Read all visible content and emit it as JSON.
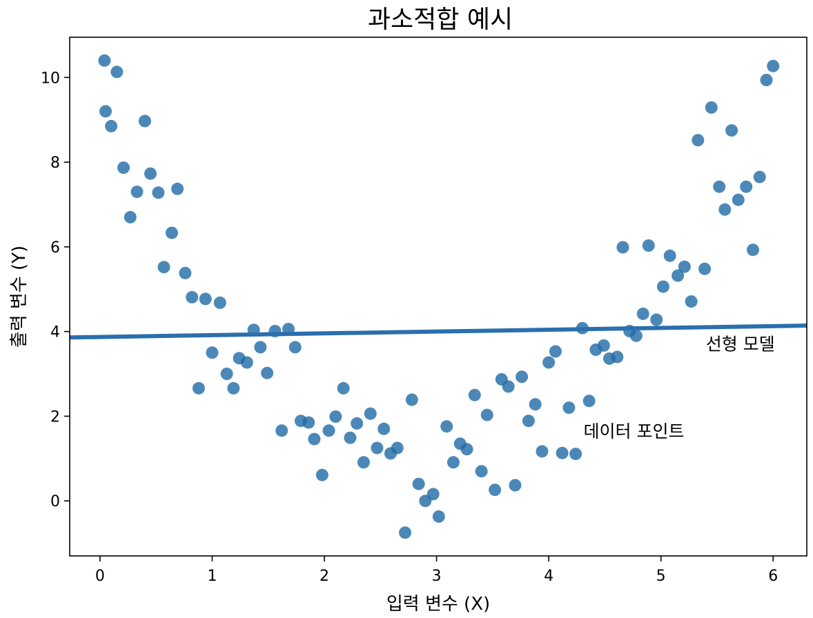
{
  "chart_data": {
    "type": "scatter",
    "title": "과소적합 예시",
    "xlabel": "입력 변수 (X)",
    "ylabel": "출력 변수 (Y)",
    "xlim": [
      -0.27,
      6.3
    ],
    "ylim": [
      -1.3,
      10.95
    ],
    "xticks": [
      0,
      1,
      2,
      3,
      4,
      5,
      6
    ],
    "yticks": [
      0,
      2,
      4,
      6,
      8,
      10
    ],
    "grid": false,
    "colors": {
      "points": "#1f6aa5",
      "line": "#2a6fae"
    },
    "series": [
      {
        "type": "scatter",
        "points": [
          [
            0.04,
            10.4
          ],
          [
            0.05,
            9.2
          ],
          [
            0.1,
            8.85
          ],
          [
            0.15,
            10.13
          ],
          [
            0.21,
            7.87
          ],
          [
            0.27,
            6.7
          ],
          [
            0.33,
            7.3
          ],
          [
            0.4,
            8.97
          ],
          [
            0.45,
            7.73
          ],
          [
            0.52,
            7.28
          ],
          [
            0.57,
            5.52
          ],
          [
            0.64,
            6.33
          ],
          [
            0.69,
            7.37
          ],
          [
            0.76,
            5.38
          ],
          [
            0.82,
            4.81
          ],
          [
            0.88,
            2.66
          ],
          [
            0.94,
            4.77
          ],
          [
            1.0,
            3.5
          ],
          [
            1.07,
            4.68
          ],
          [
            1.13,
            3.0
          ],
          [
            1.19,
            2.66
          ],
          [
            1.24,
            3.37
          ],
          [
            1.31,
            3.27
          ],
          [
            1.37,
            4.04
          ],
          [
            1.43,
            3.63
          ],
          [
            1.49,
            3.02
          ],
          [
            1.56,
            4.01
          ],
          [
            1.62,
            1.66
          ],
          [
            1.68,
            4.06
          ],
          [
            1.74,
            3.63
          ],
          [
            1.79,
            1.89
          ],
          [
            1.86,
            1.85
          ],
          [
            1.91,
            1.46
          ],
          [
            1.98,
            0.61
          ],
          [
            2.04,
            1.66
          ],
          [
            2.1,
            1.99
          ],
          [
            2.17,
            2.66
          ],
          [
            2.23,
            1.49
          ],
          [
            2.29,
            1.83
          ],
          [
            2.35,
            0.91
          ],
          [
            2.41,
            2.06
          ],
          [
            2.47,
            1.25
          ],
          [
            2.53,
            1.7
          ],
          [
            2.59,
            1.12
          ],
          [
            2.65,
            1.25
          ],
          [
            2.78,
            2.39
          ],
          [
            2.84,
            0.4
          ],
          [
            2.9,
            0.0
          ],
          [
            2.97,
            0.16
          ],
          [
            3.02,
            -0.37
          ],
          [
            2.72,
            -0.75
          ],
          [
            3.09,
            1.76
          ],
          [
            3.15,
            0.91
          ],
          [
            3.21,
            1.35
          ],
          [
            3.27,
            1.22
          ],
          [
            3.34,
            2.5
          ],
          [
            3.4,
            0.7
          ],
          [
            3.45,
            2.03
          ],
          [
            3.52,
            0.26
          ],
          [
            3.58,
            2.87
          ],
          [
            3.64,
            2.7
          ],
          [
            3.7,
            0.37
          ],
          [
            3.76,
            2.93
          ],
          [
            3.82,
            1.89
          ],
          [
            3.88,
            2.28
          ],
          [
            3.94,
            1.17
          ],
          [
            4.0,
            3.27
          ],
          [
            4.06,
            3.53
          ],
          [
            4.12,
            1.13
          ],
          [
            4.18,
            2.2
          ],
          [
            4.24,
            1.11
          ],
          [
            4.3,
            4.08
          ],
          [
            4.36,
            2.36
          ],
          [
            4.42,
            3.57
          ],
          [
            4.49,
            3.67
          ],
          [
            4.54,
            3.36
          ],
          [
            4.61,
            3.4
          ],
          [
            4.66,
            5.99
          ],
          [
            4.72,
            4.01
          ],
          [
            4.78,
            3.9
          ],
          [
            4.84,
            4.42
          ],
          [
            4.89,
            6.03
          ],
          [
            4.96,
            4.28
          ],
          [
            5.02,
            5.06
          ],
          [
            5.08,
            5.79
          ],
          [
            5.15,
            5.32
          ],
          [
            5.21,
            5.53
          ],
          [
            5.27,
            4.71
          ],
          [
            5.33,
            8.52
          ],
          [
            5.39,
            5.48
          ],
          [
            5.45,
            9.29
          ],
          [
            5.52,
            7.42
          ],
          [
            5.57,
            6.88
          ],
          [
            5.63,
            8.75
          ],
          [
            5.69,
            7.11
          ],
          [
            5.76,
            7.42
          ],
          [
            5.82,
            5.93
          ],
          [
            5.88,
            7.65
          ],
          [
            5.94,
            9.94
          ],
          [
            6.0,
            10.27
          ]
        ]
      },
      {
        "type": "line",
        "x": [
          -0.27,
          6.3
        ],
        "y": [
          3.86,
          4.14
        ]
      }
    ],
    "annotations": [
      {
        "text": "선형 모델",
        "x": 5.4,
        "y": 3.56
      },
      {
        "text": "데이터 포인트",
        "x": 4.31,
        "y": 1.5
      }
    ]
  }
}
